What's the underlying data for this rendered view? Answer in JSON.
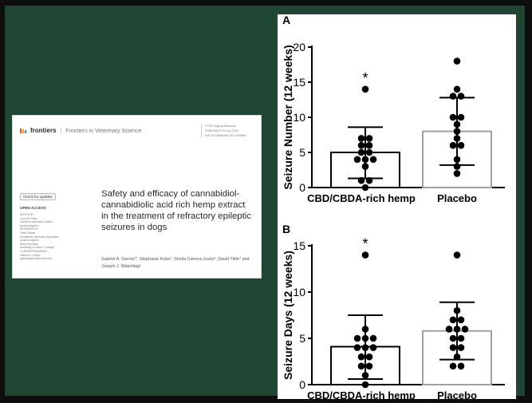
{
  "paper": {
    "brand": "frontiers",
    "journal": "Frontiers in Veterinary Science",
    "meta_lines": [
      "TYPE Original Research",
      "PUBLISHED 29 July 2022",
      "DOI 10.3389/fvets.2022.939966"
    ],
    "check_updates": "Check for updates",
    "open_access": "OPEN ACCESS",
    "side_lines": [
      "EDITED BY",
      "Lucia De Risio,",
      "Linnaeus Veterinary Limited,",
      "United Kingdom",
      "REVIEWED BY",
      "Fabio Stabile,",
      "Southfields Veterinary Specialists,",
      "United Kingdom",
      "Berta Sao Braz,",
      "University of Lisbon, Portugal",
      "*CORRESPONDENCE",
      "Gabriel A. Garcia",
      "gabrielagarcia@cornell.edu"
    ],
    "title": "Safety and efficacy of cannabidiol-cannabidiolic acid rich hemp extract in the treatment of refractory epileptic seizures in dogs",
    "authors": "Gabriel A. Garcia¹*, Stephanie Kube², Sheila Carrera-Justiz³, David Tittle⁴ and Joseph J. Wakshlag¹"
  },
  "colors": {
    "slide_bg": "#1e4633",
    "treatment_bar": "#000000",
    "placebo_bar": "#a0a0a0"
  },
  "chart_data": [
    {
      "type": "bar",
      "panel_label": "A",
      "ylabel": "Seizure Number (12 weeks)",
      "ylim": [
        0,
        20
      ],
      "yticks": [
        0,
        5,
        10,
        15,
        20
      ],
      "categories": [
        "CBD/CBDA-rich hemp",
        "Placebo"
      ],
      "values": [
        5.0,
        8.0
      ],
      "error_low": [
        1.3,
        3.2
      ],
      "error_high": [
        8.6,
        12.8
      ],
      "significance": [
        "*",
        ""
      ],
      "points": [
        [
          14,
          7,
          7,
          6,
          6,
          5,
          5,
          4,
          4,
          4,
          3,
          1,
          1,
          0
        ],
        [
          18,
          14,
          13,
          13,
          10,
          10,
          9,
          8,
          7,
          6,
          6,
          4,
          3,
          2
        ]
      ]
    },
    {
      "type": "bar",
      "panel_label": "B",
      "ylabel": "Seizure Days (12 weeks)",
      "ylim": [
        0,
        15
      ],
      "yticks": [
        0,
        5,
        10,
        15
      ],
      "categories": [
        "CBD/CBDA-rich hemp",
        "Placebo"
      ],
      "values": [
        4.1,
        5.8
      ],
      "error_low": [
        0.6,
        2.7
      ],
      "error_high": [
        7.5,
        8.9
      ],
      "significance": [
        "*",
        ""
      ],
      "points": [
        [
          14,
          6,
          5,
          5,
          5,
          4,
          4,
          4,
          3,
          3,
          2,
          2,
          1,
          0
        ],
        [
          14,
          8,
          7,
          7,
          6,
          6,
          6,
          5,
          5,
          4,
          4,
          3,
          2,
          2
        ]
      ]
    }
  ]
}
